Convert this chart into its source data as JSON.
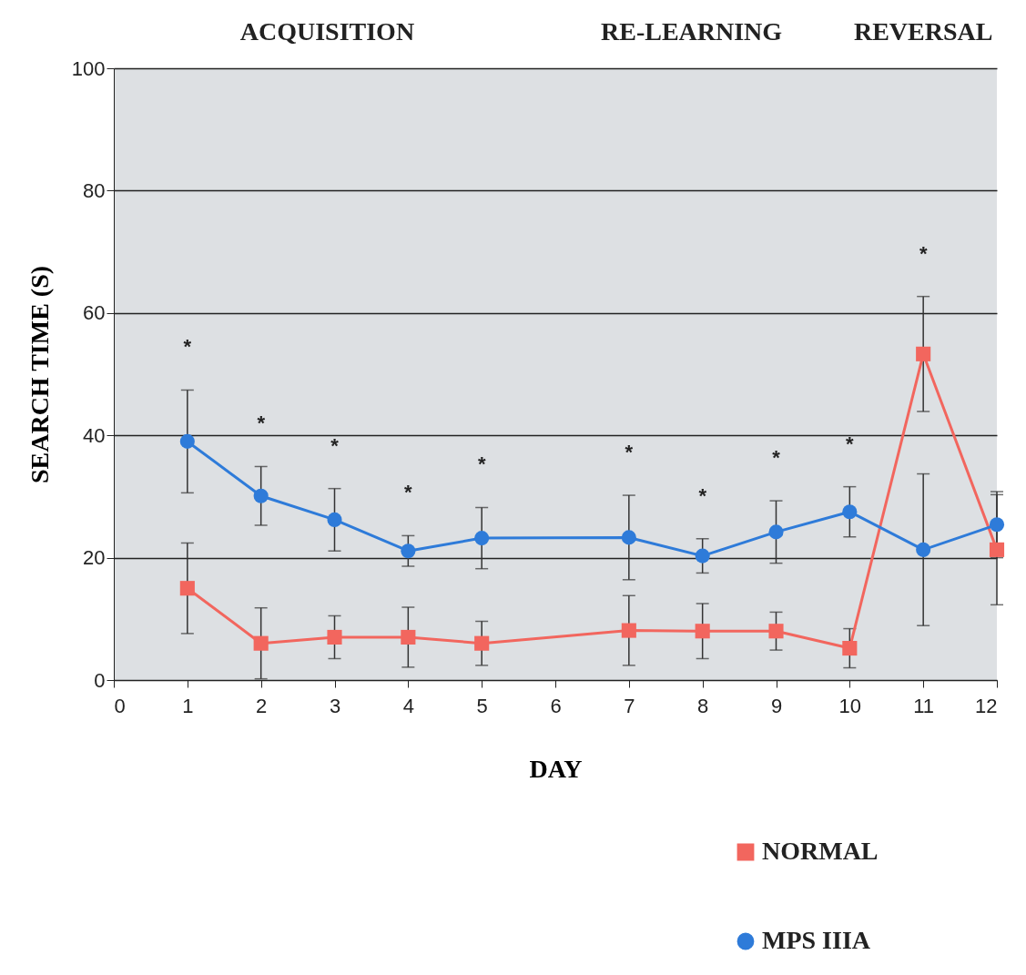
{
  "chart_data": {
    "type": "line",
    "xlabel": "DAY",
    "ylabel": "SEARCH TIME (S)",
    "x": [
      1,
      2,
      3,
      4,
      5,
      7,
      8,
      9,
      10,
      11,
      12
    ],
    "series": [
      {
        "name": "NORMAL",
        "color": "#f2665e",
        "marker": "square",
        "values": [
          15,
          6,
          7,
          7,
          6,
          8.1,
          8,
          8,
          5.2,
          53.3,
          21.3
        ],
        "errors": [
          7.4,
          5.8,
          3.5,
          4.9,
          3.6,
          5.7,
          4.5,
          3.1,
          3.2,
          9.4,
          9
        ]
      },
      {
        "name": "MPS IIIA",
        "color": "#2e7bd9",
        "marker": "circle",
        "values": [
          39,
          30.1,
          26.2,
          21.1,
          23.2,
          23.3,
          20.3,
          24.2,
          27.5,
          21.3,
          25.4
        ],
        "errors": [
          8.4,
          4.8,
          5.1,
          2.5,
          5,
          6.9,
          2.8,
          5.1,
          4.1,
          12.4,
          5.4
        ]
      }
    ],
    "xlim": [
      0,
      12
    ],
    "xticks": [
      0,
      1,
      2,
      3,
      4,
      5,
      6,
      7,
      8,
      9,
      10,
      11,
      12
    ],
    "ylim": [
      0,
      100
    ],
    "yticks": [
      0,
      20,
      40,
      60,
      80,
      100
    ],
    "grid": "y",
    "legend": "bottom right",
    "annotations": [
      "ACQUISITION",
      "RE-LEARNING",
      "REVERSAL",
      "*",
      "*",
      "*",
      "*",
      "*",
      "*",
      "*",
      "*",
      "*",
      "*"
    ]
  }
}
